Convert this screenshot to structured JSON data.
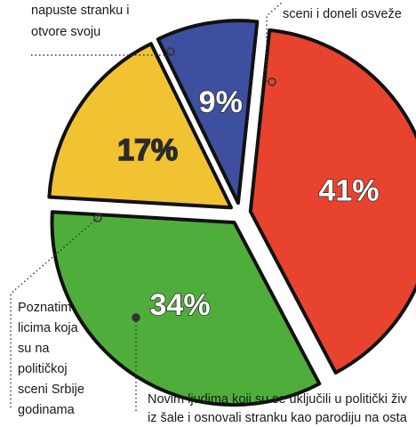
{
  "chart_data": {
    "type": "pie",
    "values": [
      41,
      34,
      17,
      9
    ],
    "value_labels": [
      "41%",
      "34%",
      "17%",
      "9%"
    ],
    "colors": [
      "#e8432f",
      "#4fae3b",
      "#f1c232",
      "#3e4f9f"
    ],
    "label_colors": [
      "#ffffff",
      "#ffffff",
      "#2a2a2a",
      "#ffffff"
    ],
    "annotations": [
      [
        "napuste stranku i",
        "otvore svoju"
      ],
      [
        "sceni i doneli osveže"
      ],
      [
        "Poznatim",
        "licima koja",
        "su na",
        "političkoj",
        "sceni Srbije",
        "godinama"
      ],
      [
        "Novim ljudima koji su se uključili u politički živ",
        "iz šale i osnovali stranku kao parodiju na osta"
      ]
    ]
  }
}
